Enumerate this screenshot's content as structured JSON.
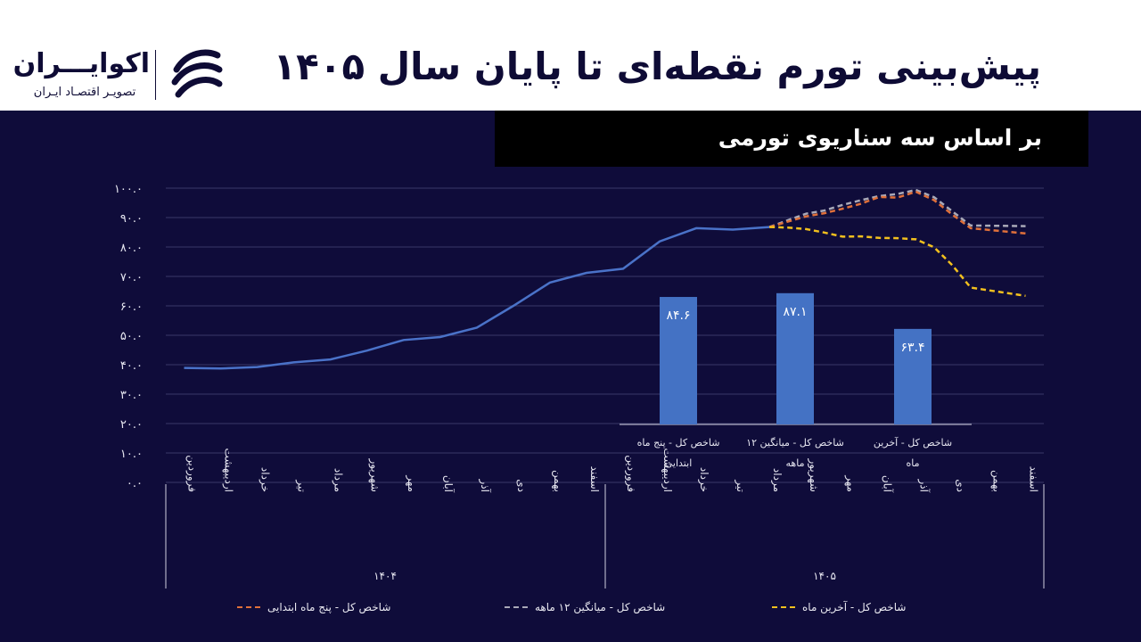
{
  "header": {
    "title": "پیش‌بینی تورم نقطه‌ای تا پایان سال ۱۴۰۵",
    "brand_name": "اکوایـــران",
    "brand_sub": "تصویـر اقتصـاد ایـران",
    "subtitle": "بر اساس سه سناریوی تورمی"
  },
  "colors": {
    "background": "#0f0c3a",
    "line": "#4a72c8",
    "bars": "#4472c4",
    "scenario_5m": "#e0703a",
    "scenario_12m": "#a9a9b8",
    "scenario_last": "#f2c01e"
  },
  "chart_data": {
    "type": "line",
    "y_ticks": [
      "۰.۰",
      "۱۰.۰",
      "۲۰.۰",
      "۳۰.۰",
      "۴۰.۰",
      "۵۰.۰",
      "۶۰.۰",
      "۷۰.۰",
      "۸۰.۰",
      "۹۰.۰",
      "۱۰۰.۰"
    ],
    "ylim": [
      0,
      100
    ],
    "grid": true,
    "x_months": [
      "فروردین",
      "اردیبهشت",
      "خرداد",
      "تیر",
      "مرداد",
      "شهریور",
      "مهر",
      "آبان",
      "آذر",
      "دی",
      "بهمن",
      "اسفند",
      "فروردین",
      "اردیبهشت",
      "خرداد",
      "تیر",
      "مرداد",
      "شهریور",
      "مهر",
      "آبان",
      "آذر",
      "دی",
      "بهمن",
      "اسفند"
    ],
    "x_years": [
      "۱۴۰۴",
      "۱۴۰۵"
    ],
    "actual": [
      38.9,
      38.7,
      39.2,
      40.8,
      41.8,
      44.8,
      48.4,
      49.4,
      52.6,
      60.0,
      67.9,
      71.2,
      72.6,
      81.9,
      86.4,
      85.9,
      86.8
    ],
    "series": [
      {
        "name": "شاخص کل - پنج ماه ابتدایی",
        "x_start": 16,
        "values": [
          86.8,
          88.6,
          90.4,
          91.5,
          93.0,
          94.7,
          97.0,
          96.8,
          98.8,
          95.9,
          91.0,
          86.4,
          84.6
        ]
      },
      {
        "name": "شاخص کل - میانگین ۱۲ ماهه",
        "x_start": 16,
        "values": [
          86.8,
          89.1,
          91.3,
          92.4,
          94.3,
          95.9,
          97.3,
          98.0,
          99.4,
          96.9,
          92.1,
          87.3,
          87.1
        ]
      },
      {
        "name": "شاخص کل - آخرین ماه",
        "x_start": 16,
        "values": [
          86.8,
          86.6,
          86.1,
          84.9,
          83.5,
          83.6,
          83.1,
          83.0,
          82.6,
          79.9,
          73.8,
          66.2,
          63.4
        ]
      }
    ],
    "bars": {
      "categories": [
        "شاخص کل - پنج ماه ابتدایی",
        "شاخص کل - میانگین ۱۲ ماهه",
        "شاخص کل - آخرین ماه"
      ],
      "values": [
        84.6,
        87.1,
        63.4
      ],
      "labels": [
        "۸۴.۶",
        "۸۷.۱",
        "۶۳.۴"
      ]
    }
  }
}
